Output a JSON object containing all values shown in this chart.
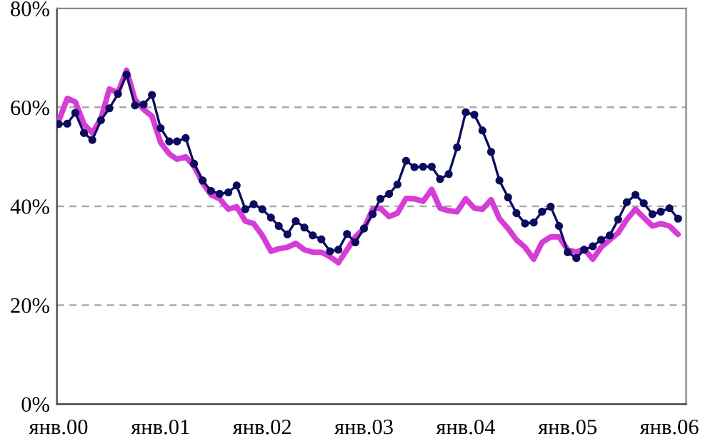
{
  "chart_data": {
    "type": "line",
    "x": [
      "2000-01",
      "2000-02",
      "2000-03",
      "2000-04",
      "2000-05",
      "2000-06",
      "2000-07",
      "2000-08",
      "2000-09",
      "2000-10",
      "2000-11",
      "2000-12",
      "2001-01",
      "2001-02",
      "2001-03",
      "2001-04",
      "2001-05",
      "2001-06",
      "2001-07",
      "2001-08",
      "2001-09",
      "2001-10",
      "2001-11",
      "2001-12",
      "2002-01",
      "2002-02",
      "2002-03",
      "2002-04",
      "2002-05",
      "2002-06",
      "2002-07",
      "2002-08",
      "2002-09",
      "2002-10",
      "2002-11",
      "2002-12",
      "2003-01",
      "2003-02",
      "2003-03",
      "2003-04",
      "2003-05",
      "2003-06",
      "2003-07",
      "2003-08",
      "2003-09",
      "2003-10",
      "2003-11",
      "2003-12",
      "2004-01",
      "2004-02",
      "2004-03",
      "2004-04",
      "2004-05",
      "2004-06",
      "2004-07",
      "2004-08",
      "2004-09",
      "2004-10",
      "2004-11",
      "2004-12",
      "2005-01",
      "2005-02",
      "2005-03",
      "2005-04",
      "2005-05",
      "2005-06",
      "2005-07",
      "2005-08",
      "2005-09",
      "2005-10",
      "2005-11",
      "2005-12",
      "2006-01",
      "2006-02"
    ],
    "series": [
      {
        "color": "#d63cd6",
        "marker": "none",
        "values": [
          57.2,
          61.8,
          61.1,
          56.6,
          54.8,
          57.7,
          63.7,
          63.0,
          67.5,
          61.6,
          59.6,
          58.2,
          52.9,
          50.6,
          49.5,
          50.0,
          48.1,
          44.7,
          42.3,
          41.5,
          39.4,
          39.9,
          37.0,
          36.5,
          34.1,
          30.9,
          31.4,
          31.7,
          32.5,
          31.2,
          30.7,
          30.7,
          29.8,
          28.6,
          31.2,
          33.8,
          35.5,
          39.4,
          39.6,
          37.9,
          38.6,
          41.6,
          41.5,
          41.0,
          43.4,
          39.6,
          39.1,
          38.9,
          41.5,
          39.6,
          39.4,
          41.3,
          37.5,
          35.5,
          33.2,
          31.7,
          29.3,
          32.7,
          33.8,
          33.8,
          31.2,
          30.7,
          31.4,
          29.3,
          31.7,
          33.2,
          34.6,
          37.3,
          39.4,
          37.7,
          36.0,
          36.5,
          36.0,
          34.3
        ]
      },
      {
        "color": "#0c0c5e",
        "marker": "circle",
        "values": [
          56.6,
          56.7,
          58.9,
          54.8,
          53.4,
          57.4,
          59.8,
          62.7,
          66.6,
          60.4,
          60.6,
          62.5,
          55.8,
          53.1,
          53.1,
          53.8,
          48.6,
          45.2,
          43.1,
          42.5,
          42.8,
          44.2,
          39.4,
          40.4,
          39.4,
          37.7,
          36.0,
          34.3,
          37.0,
          35.7,
          34.1,
          33.3,
          30.9,
          31.2,
          34.4,
          32.7,
          35.5,
          38.4,
          41.5,
          42.5,
          44.4,
          49.2,
          47.9,
          48.0,
          48.0,
          45.5,
          46.5,
          51.9,
          59.0,
          58.5,
          55.3,
          51.0,
          45.2,
          41.8,
          38.6,
          36.5,
          36.7,
          38.9,
          39.9,
          36.0,
          30.7,
          29.5,
          31.2,
          31.9,
          33.2,
          34.1,
          37.3,
          40.8,
          42.3,
          40.6,
          38.4,
          38.9,
          39.6,
          37.5
        ]
      }
    ],
    "xlim": [
      "1999-12-26",
      "2006-03-02"
    ],
    "xticks": [
      {
        "value": "2000-01",
        "label": "янв.00"
      },
      {
        "value": "2001-01",
        "label": "янв.01"
      },
      {
        "value": "2002-01",
        "label": "янв.02"
      },
      {
        "value": "2003-01",
        "label": "янв.03"
      },
      {
        "value": "2004-01",
        "label": "янв.04"
      },
      {
        "value": "2005-01",
        "label": "янв.05"
      },
      {
        "value": "2006-01",
        "label": "янв.06"
      }
    ],
    "ylim": [
      0,
      80
    ],
    "yticks": [
      {
        "value": 0,
        "label": "0%"
      },
      {
        "value": 20,
        "label": "20%"
      },
      {
        "value": 40,
        "label": "40%"
      },
      {
        "value": 60,
        "label": "60%"
      },
      {
        "value": 80,
        "label": "80%"
      }
    ],
    "grid": "y",
    "legend": false,
    "line_style": "solid"
  }
}
